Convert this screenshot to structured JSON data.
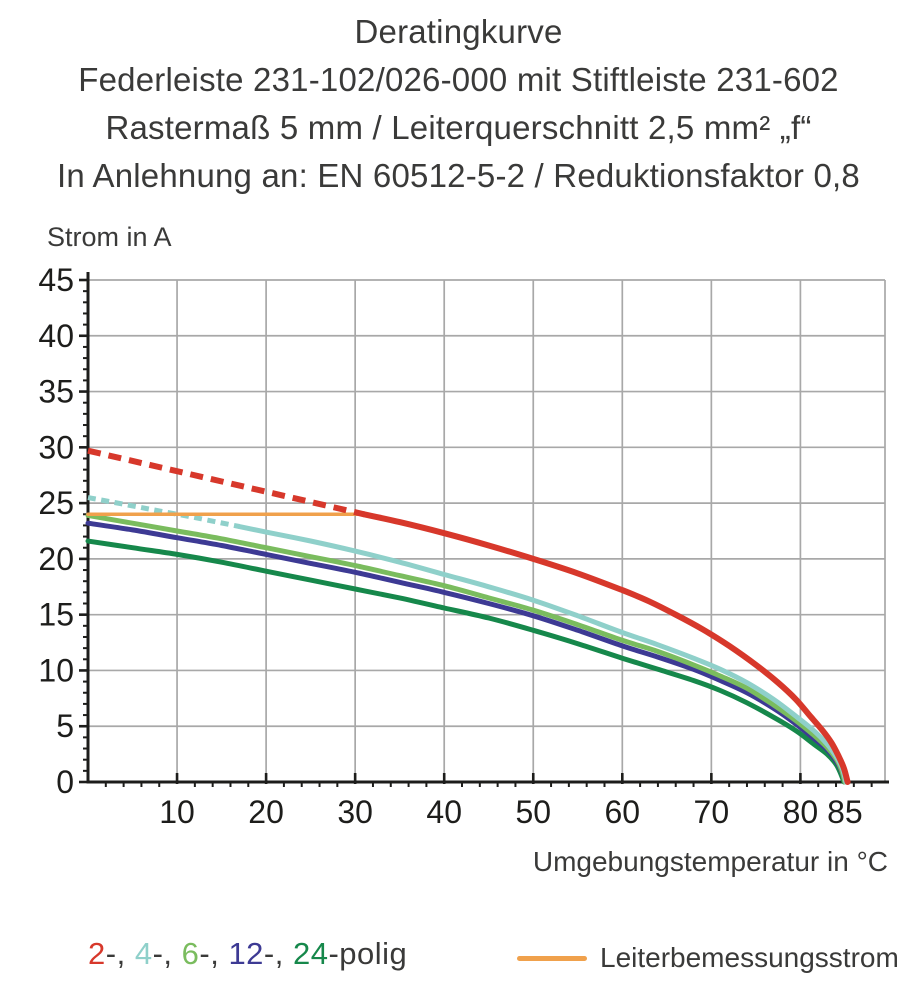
{
  "header": {
    "title": "Deratingkurve",
    "subtitle_lines": [
      "Federleiste 231-102/026-000 mit Stiftleiste 231-602",
      "Rastermaß 5 mm / Leiterquerschnitt 2,5 mm² „f“",
      "In Anlehnung an: EN 60512-5-2 / Reduktionsfaktor 0,8"
    ]
  },
  "chart_data": {
    "type": "line",
    "title": "Deratingkurve",
    "xlabel": "Umgebungstemperatur in °C",
    "ylabel": "Strom in A",
    "xlim": [
      0,
      89.5
    ],
    "ylim": [
      0,
      45
    ],
    "x_major_ticks": [
      10,
      20,
      30,
      40,
      50,
      60,
      70,
      80,
      85
    ],
    "y_major_ticks": [
      0,
      5,
      10,
      15,
      20,
      25,
      30,
      35,
      40,
      45
    ],
    "x_minor_step": 2,
    "y_minor_step": 1,
    "grid": true,
    "grid_color": "#a8a8a8",
    "axis_color": "#1d1d1b",
    "series": [
      {
        "name": "24-polig",
        "color": "#16884b",
        "width": 5,
        "solid_points": [
          [
            0,
            21.6
          ],
          [
            5,
            21.0
          ],
          [
            10,
            20.4
          ],
          [
            15,
            19.7
          ],
          [
            20,
            18.9
          ],
          [
            25,
            18.1
          ],
          [
            30,
            17.3
          ],
          [
            35,
            16.5
          ],
          [
            40,
            15.6
          ],
          [
            45,
            14.7
          ],
          [
            50,
            13.6
          ],
          [
            55,
            12.4
          ],
          [
            60,
            11.1
          ],
          [
            64,
            10.1
          ],
          [
            68,
            9.1
          ],
          [
            71,
            8.2
          ],
          [
            74,
            7.1
          ],
          [
            77,
            5.8
          ],
          [
            79.5,
            4.6
          ],
          [
            81.5,
            3.4
          ],
          [
            83,
            2.5
          ],
          [
            84,
            1.6
          ],
          [
            84.5,
            0.8
          ],
          [
            84.9,
            0
          ]
        ]
      },
      {
        "name": "12-polig",
        "color": "#3d3a94",
        "width": 5,
        "solid_points": [
          [
            0,
            23.2
          ],
          [
            5,
            22.6
          ],
          [
            10,
            21.9
          ],
          [
            15,
            21.2
          ],
          [
            20,
            20.4
          ],
          [
            25,
            19.6
          ],
          [
            30,
            18.8
          ],
          [
            35,
            17.9
          ],
          [
            40,
            17.0
          ],
          [
            45,
            16.0
          ],
          [
            50,
            14.9
          ],
          [
            55,
            13.6
          ],
          [
            60,
            12.2
          ],
          [
            64,
            11.2
          ],
          [
            68,
            10.1
          ],
          [
            71,
            9.1
          ],
          [
            74,
            8.0
          ],
          [
            77,
            6.6
          ],
          [
            79.5,
            5.2
          ],
          [
            81.5,
            3.9
          ],
          [
            83,
            2.9
          ],
          [
            84,
            1.9
          ],
          [
            84.6,
            1.0
          ],
          [
            85,
            0
          ]
        ]
      },
      {
        "name": "6-polig",
        "color": "#7abc5e",
        "width": 5,
        "solid_points": [
          [
            0,
            23.9
          ],
          [
            5,
            23.2
          ],
          [
            10,
            22.5
          ],
          [
            15,
            21.8
          ],
          [
            20,
            21.0
          ],
          [
            25,
            20.2
          ],
          [
            30,
            19.4
          ],
          [
            35,
            18.5
          ],
          [
            40,
            17.6
          ],
          [
            45,
            16.5
          ],
          [
            50,
            15.4
          ],
          [
            55,
            14.1
          ],
          [
            60,
            12.7
          ],
          [
            64,
            11.7
          ],
          [
            68,
            10.5
          ],
          [
            71,
            9.5
          ],
          [
            74,
            8.4
          ],
          [
            77,
            6.9
          ],
          [
            79.5,
            5.5
          ],
          [
            81.5,
            4.2
          ],
          [
            83,
            3.1
          ],
          [
            84,
            2.1
          ],
          [
            84.6,
            1.1
          ],
          [
            85,
            0
          ]
        ]
      },
      {
        "name": "4-polig",
        "color": "#8fd0ca",
        "width": 5,
        "dashed_points": [
          [
            0,
            25.5
          ],
          [
            6,
            24.6
          ],
          [
            12,
            23.7
          ],
          [
            17,
            22.9
          ]
        ],
        "dash_pattern": "8 5.5",
        "solid_points": [
          [
            17,
            22.9
          ],
          [
            20,
            22.4
          ],
          [
            25,
            21.6
          ],
          [
            30,
            20.7
          ],
          [
            35,
            19.7
          ],
          [
            40,
            18.6
          ],
          [
            45,
            17.5
          ],
          [
            50,
            16.3
          ],
          [
            55,
            14.9
          ],
          [
            60,
            13.4
          ],
          [
            64,
            12.3
          ],
          [
            68,
            11.1
          ],
          [
            71,
            10.1
          ],
          [
            74,
            8.9
          ],
          [
            77,
            7.4
          ],
          [
            79.5,
            5.9
          ],
          [
            81.5,
            4.6
          ],
          [
            83,
            3.4
          ],
          [
            84,
            2.3
          ],
          [
            84.7,
            1.2
          ],
          [
            85.1,
            0
          ]
        ]
      },
      {
        "name": "Leiterbemessungsstrom",
        "color": "#f0a14c",
        "width": 3.5,
        "solid_points": [
          [
            0,
            24
          ],
          [
            31,
            24
          ]
        ]
      },
      {
        "name": "2-polig",
        "color": "#d7382b",
        "width": 6,
        "dashed_points": [
          [
            0,
            29.7
          ],
          [
            31,
            24
          ]
        ],
        "dash_pattern": "13 8",
        "solid_points": [
          [
            31,
            24
          ],
          [
            35,
            23.3
          ],
          [
            40,
            22.3
          ],
          [
            45,
            21.2
          ],
          [
            50,
            20.0
          ],
          [
            55,
            18.7
          ],
          [
            60,
            17.2
          ],
          [
            63,
            16.2
          ],
          [
            66,
            15.0
          ],
          [
            69,
            13.7
          ],
          [
            72,
            12.2
          ],
          [
            75,
            10.5
          ],
          [
            77.5,
            8.9
          ],
          [
            79.5,
            7.4
          ],
          [
            81,
            6.0
          ],
          [
            82.5,
            4.6
          ],
          [
            83.5,
            3.5
          ],
          [
            84.3,
            2.3
          ],
          [
            84.9,
            1.2
          ],
          [
            85.3,
            0
          ]
        ]
      }
    ]
  },
  "legend": {
    "pole_items": [
      {
        "label": "2",
        "color": "#d7382b"
      },
      {
        "label": "4",
        "color": "#8fd0ca"
      },
      {
        "label": "6",
        "color": "#7abc5e"
      },
      {
        "label": "12",
        "color": "#3d3a94"
      },
      {
        "label": "24",
        "color": "#16884b"
      }
    ],
    "separator": "-, ",
    "suffix": "-polig",
    "rated_current_label": "Leiterbemessungsstrom",
    "rated_current_color": "#f0a14c"
  }
}
